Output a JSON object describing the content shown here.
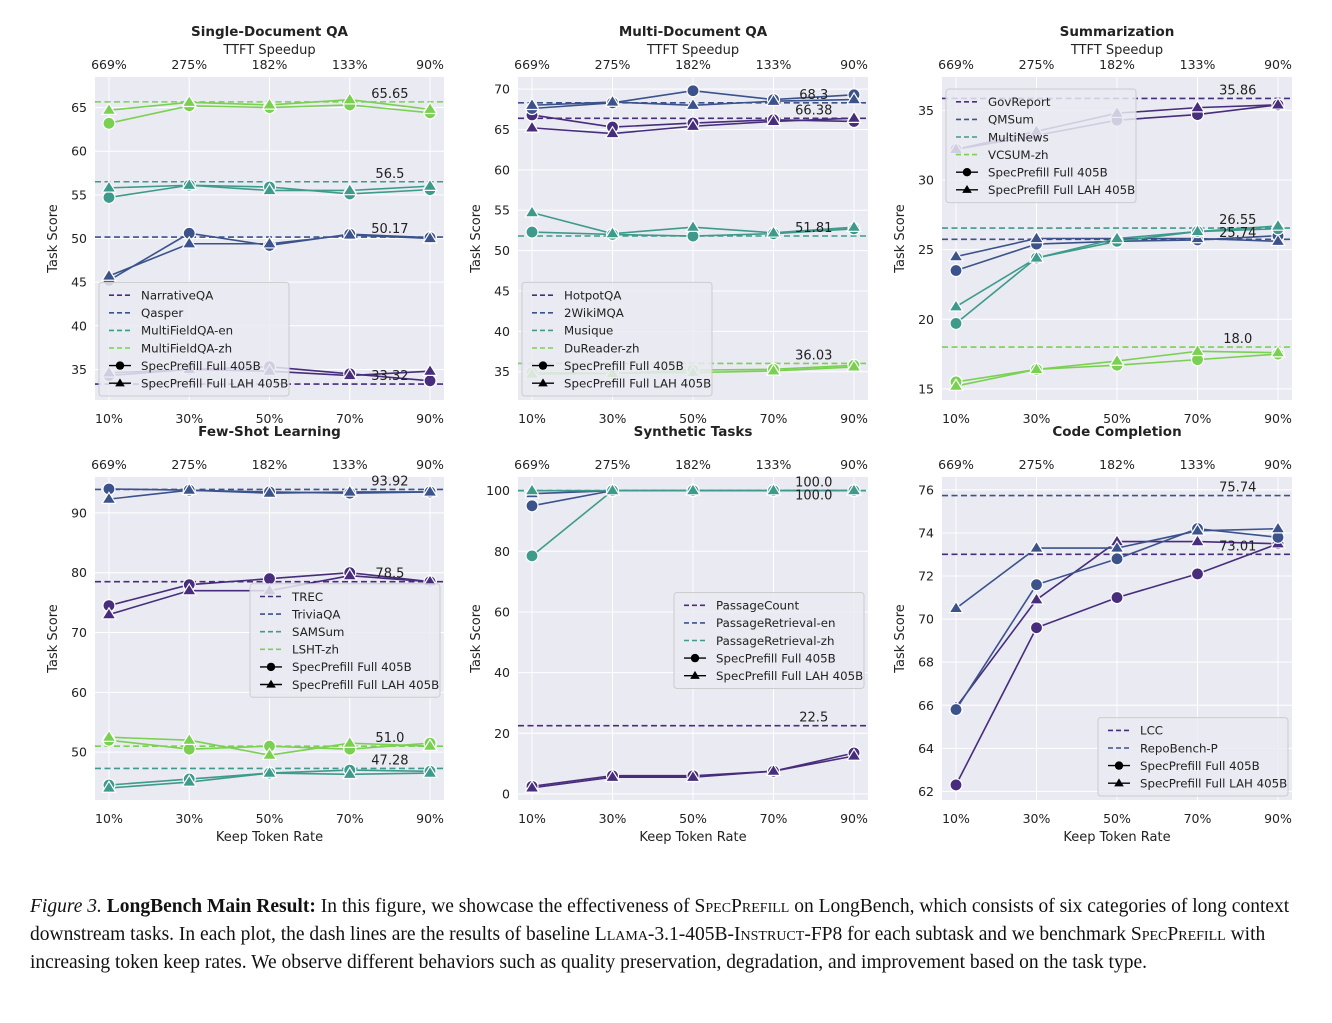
{
  "figure": {
    "keep_rate_ticks": [
      "10%",
      "30%",
      "50%",
      "70%",
      "90%"
    ],
    "speedup_ticks": [
      "669%",
      "275%",
      "182%",
      "133%",
      "90%"
    ],
    "top_axis_label": "TTFT Speedup",
    "x_label": "Keep Token Rate",
    "y_label": "Task Score",
    "method_full": "SpecPrefill Full 405B",
    "method_lah": "SpecPrefill Full LAH 405B"
  },
  "chart_data": [
    {
      "type": "line",
      "title": "Single-Document QA",
      "x": [
        10,
        30,
        50,
        70,
        90
      ],
      "ylim": [
        31.5,
        68.5
      ],
      "yticks": [
        35,
        40,
        45,
        50,
        55,
        60,
        65
      ],
      "ytick_labels": [
        "35",
        "40",
        "45",
        "50",
        "55",
        "60",
        "65"
      ],
      "show_top_title": true,
      "show_xlabel": false,
      "legend": {
        "position": "bottom-left"
      },
      "series": [
        {
          "name": "NarrativeQA",
          "color": "#472d7b",
          "baseline": 33.32,
          "baseline_label": "33.32",
          "full": [
            34.3,
            35.0,
            35.3,
            34.5,
            33.7
          ],
          "lah": [
            34.6,
            35.0,
            34.8,
            34.3,
            34.8
          ]
        },
        {
          "name": "Qasper",
          "color": "#3b528b",
          "baseline": 50.17,
          "baseline_label": "50.17",
          "full": [
            45.2,
            50.6,
            49.2,
            50.5,
            50.1
          ],
          "lah": [
            45.7,
            49.4,
            49.4,
            50.4,
            50.0
          ]
        },
        {
          "name": "MultiFieldQA-en",
          "color": "#3e9b8b",
          "baseline": 56.5,
          "baseline_label": "56.5",
          "full": [
            54.7,
            56.1,
            55.9,
            55.1,
            55.6
          ],
          "lah": [
            55.8,
            56.1,
            55.5,
            55.5,
            56.0
          ]
        },
        {
          "name": "MultiFieldQA-zh",
          "color": "#7ad151",
          "baseline": 65.65,
          "baseline_label": "65.65",
          "full": [
            63.2,
            65.2,
            65.0,
            65.3,
            64.4
          ],
          "lah": [
            64.7,
            65.6,
            65.3,
            65.9,
            64.8
          ]
        }
      ]
    },
    {
      "type": "line",
      "title": "Multi-Document QA",
      "x": [
        10,
        30,
        50,
        70,
        90
      ],
      "ylim": [
        31.5,
        71.5
      ],
      "yticks": [
        35,
        40,
        45,
        50,
        55,
        60,
        65,
        70
      ],
      "ytick_labels": [
        "35",
        "40",
        "45",
        "50",
        "55",
        "60",
        "65",
        "70"
      ],
      "show_top_title": true,
      "show_xlabel": false,
      "legend": {
        "position": "bottom-left"
      },
      "series": [
        {
          "name": "HotpotQA",
          "color": "#472d7b",
          "baseline": 66.38,
          "baseline_label": "66.38",
          "full": [
            66.8,
            65.3,
            65.8,
            66.2,
            66.0
          ],
          "lah": [
            65.2,
            64.5,
            65.4,
            66.0,
            66.4
          ]
        },
        {
          "name": "2WikiMQA",
          "color": "#3b528b",
          "baseline": 68.3,
          "baseline_label": "68.3",
          "full": [
            67.6,
            68.3,
            69.8,
            68.7,
            69.3
          ],
          "lah": [
            68.0,
            68.4,
            68.0,
            68.5,
            68.7
          ]
        },
        {
          "name": "Musique",
          "color": "#3e9b8b",
          "baseline": 51.81,
          "baseline_label": "51.81",
          "full": [
            52.3,
            52.0,
            51.8,
            52.1,
            52.7
          ],
          "lah": [
            54.7,
            52.1,
            52.9,
            52.2,
            52.9
          ]
        },
        {
          "name": "DuReader-zh",
          "color": "#7ad151",
          "baseline": 36.03,
          "baseline_label": "36.03",
          "full": [
            34.9,
            34.8,
            35.2,
            35.3,
            35.8
          ],
          "lah": [
            34.7,
            34.8,
            34.9,
            35.1,
            35.6
          ]
        }
      ]
    },
    {
      "type": "line",
      "title": "Summarization",
      "x": [
        10,
        30,
        50,
        70,
        90
      ],
      "ylim": [
        14.2,
        37.4
      ],
      "yticks": [
        15,
        20,
        25,
        30,
        35
      ],
      "ytick_labels": [
        "15",
        "20",
        "25",
        "30",
        "35"
      ],
      "show_top_title": true,
      "show_xlabel": false,
      "legend": {
        "position": "top-left"
      },
      "series": [
        {
          "name": "GovReport",
          "color": "#472d7b",
          "baseline": 35.86,
          "baseline_label": "35.86",
          "full": [
            32.2,
            33.2,
            34.3,
            34.7,
            35.4
          ],
          "lah": [
            32.2,
            33.5,
            34.8,
            35.2,
            35.4
          ]
        },
        {
          "name": "QMSum",
          "color": "#3b528b",
          "baseline": 25.74,
          "baseline_label": "25.74",
          "full": [
            23.5,
            25.4,
            25.6,
            25.7,
            26.0
          ],
          "lah": [
            24.5,
            25.8,
            25.8,
            25.8,
            25.6
          ]
        },
        {
          "name": "MultiNews",
          "color": "#3e9b8b",
          "baseline": 26.55,
          "baseline_label": "26.55",
          "full": [
            19.7,
            24.4,
            25.6,
            26.3,
            26.5
          ],
          "lah": [
            20.9,
            24.4,
            25.8,
            26.3,
            26.7
          ]
        },
        {
          "name": "VCSUM-zh",
          "color": "#7ad151",
          "baseline": 18.0,
          "baseline_label": "18.0",
          "full": [
            15.5,
            16.4,
            16.7,
            17.1,
            17.5
          ],
          "lah": [
            15.2,
            16.4,
            17.0,
            17.7,
            17.6
          ]
        }
      ]
    },
    {
      "type": "line",
      "title": "Few-Shot Learning",
      "x": [
        10,
        30,
        50,
        70,
        90
      ],
      "ylim": [
        42.0,
        96.0
      ],
      "yticks": [
        50,
        60,
        70,
        80,
        90
      ],
      "ytick_labels": [
        "50",
        "60",
        "70",
        "80",
        "90"
      ],
      "show_top_title": true,
      "show_xlabel": true,
      "legend": {
        "position": "center-right"
      },
      "series": [
        {
          "name": "TREC",
          "color": "#472d7b",
          "baseline": 78.5,
          "baseline_label": "78.5",
          "full": [
            74.5,
            78.0,
            79.0,
            80.0,
            78.5
          ],
          "lah": [
            73.0,
            77.0,
            77.0,
            79.5,
            78.5
          ]
        },
        {
          "name": "TriviaQA",
          "color": "#3b528b",
          "baseline": 93.92,
          "baseline_label": "93.92",
          "full": [
            94.0,
            93.8,
            93.5,
            93.3,
            93.5
          ],
          "lah": [
            92.3,
            93.8,
            93.3,
            93.5,
            93.5
          ]
        },
        {
          "name": "SAMSum",
          "color": "#3e9b8b",
          "baseline": 47.28,
          "baseline_label": "47.28",
          "full": [
            44.5,
            45.5,
            46.5,
            47.0,
            46.8
          ],
          "lah": [
            44.0,
            45.0,
            46.5,
            46.3,
            46.5
          ]
        },
        {
          "name": "LSHT-zh",
          "color": "#7ad151",
          "baseline": 51.0,
          "baseline_label": "51.0",
          "full": [
            52.0,
            50.5,
            51.0,
            50.5,
            51.5
          ],
          "lah": [
            52.5,
            52.0,
            49.5,
            51.5,
            51.0
          ]
        }
      ]
    },
    {
      "type": "line",
      "title": "Synthetic Tasks",
      "x": [
        10,
        30,
        50,
        70,
        90
      ],
      "ylim": [
        -2.0,
        104.5
      ],
      "yticks": [
        0,
        20,
        40,
        60,
        80,
        100
      ],
      "ytick_labels": [
        "0",
        "20",
        "40",
        "60",
        "80",
        "100"
      ],
      "show_top_title": true,
      "show_xlabel": true,
      "legend": {
        "position": "center-right"
      },
      "series": [
        {
          "name": "PassageCount",
          "color": "#472d7b",
          "baseline": 22.5,
          "baseline_label": "22.5",
          "full": [
            2.5,
            6.0,
            6.0,
            7.5,
            13.5
          ],
          "lah": [
            2.0,
            5.5,
            5.5,
            7.5,
            12.5
          ]
        },
        {
          "name": "PassageRetrieval-en",
          "color": "#3b528b",
          "baseline": 100.0,
          "baseline_label": "100.0",
          "full": [
            95.0,
            100.0,
            100.0,
            100.0,
            100.0
          ],
          "lah": [
            99.0,
            100.0,
            100.0,
            100.0,
            100.0
          ]
        },
        {
          "name": "PassageRetrieval-zh",
          "color": "#3e9b8b",
          "baseline": 100.0,
          "baseline_label": "100.0",
          "full": [
            78.5,
            100.0,
            100.0,
            100.0,
            100.0
          ],
          "lah": [
            100.0,
            100.0,
            100.0,
            100.0,
            100.0
          ]
        }
      ]
    },
    {
      "type": "line",
      "title": "Code Completion",
      "x": [
        10,
        30,
        50,
        70,
        90
      ],
      "ylim": [
        61.6,
        76.6
      ],
      "yticks": [
        62,
        64,
        66,
        68,
        70,
        72,
        74,
        76
      ],
      "ytick_labels": [
        "62",
        "64",
        "66",
        "68",
        "70",
        "72",
        "74",
        "76"
      ],
      "show_top_title": true,
      "show_xlabel": true,
      "legend": {
        "position": "bottom-right"
      },
      "series": [
        {
          "name": "LCC",
          "color": "#472d7b",
          "baseline": 73.01,
          "baseline_label": "73.01",
          "full": [
            62.3,
            69.6,
            71.0,
            72.1,
            73.5
          ],
          "lah": [
            65.9,
            70.9,
            73.6,
            73.6,
            73.5
          ]
        },
        {
          "name": "RepoBench-P",
          "color": "#3b528b",
          "baseline": 75.74,
          "baseline_label": "75.74",
          "full": [
            65.8,
            71.6,
            72.8,
            74.2,
            73.8
          ],
          "lah": [
            70.5,
            73.3,
            73.3,
            74.1,
            74.2
          ]
        }
      ]
    }
  ],
  "caption": {
    "label": "Figure 3.",
    "title": "LongBench Main Result:",
    "t1": " In this figure, we showcase the effectiveness of ",
    "m1": "SpecPrefill",
    "t2": " on LongBench, which consists of six categories of long context downstream tasks. In each plot, the dash lines are the results of baseline ",
    "m2": "Llama-3.1-405B-Instruct-FP8",
    "t3": " for each subtask and we benchmark ",
    "m3": "SpecPrefill",
    "t4": " with increasing token keep rates. We observe different behaviors such as quality preservation, degradation, and improvement based on the task type."
  }
}
